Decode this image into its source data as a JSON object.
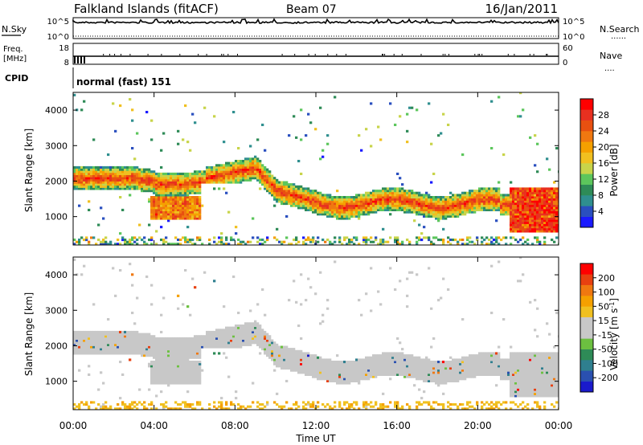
{
  "header": {
    "station": "Falkland Islands (fitACF)",
    "beam": "Beam 07",
    "date": "16/Jan/2011"
  },
  "strip_labels": {
    "nsky": "N.Sky",
    "nsearch": "N.Search",
    "freq_line1": "Freq.",
    "freq_line2": "[MHz]",
    "nave": "Nave",
    "cpid": "CPID",
    "cpid_value": "normal (fast) 151",
    "dots": "......",
    "dots_short": "...."
  },
  "strip_ticks": {
    "noise_left": [
      "10^5",
      "10^0"
    ],
    "noise_right": [
      "10^5",
      "10^0"
    ],
    "freq_left": [
      "18",
      "8"
    ],
    "freq_right": [
      "60",
      "0"
    ]
  },
  "chart_data": [
    {
      "type": "heatmap",
      "panel": "power",
      "ylabel": "Slant Range [km]",
      "xlabel": "",
      "x_ticks": [
        "00:00",
        "04:00",
        "08:00",
        "12:00",
        "16:00",
        "20:00",
        "00:00"
      ],
      "y_ticks": [
        "1000",
        "2000",
        "3000",
        "4000"
      ],
      "ylim": [
        200,
        4500
      ],
      "colorbar": {
        "label": "Power [dB]",
        "ticks": [
          "4",
          "8",
          "12",
          "16",
          "20",
          "24",
          "28"
        ],
        "colors": [
          "#1a1aff",
          "#2a4fbf",
          "#2f8f8f",
          "#2e8b57",
          "#5cc65c",
          "#c8d44a",
          "#f0c020",
          "#f5a000",
          "#f07810",
          "#e85010",
          "#e83020",
          "#ff0000"
        ]
      }
    },
    {
      "type": "heatmap",
      "panel": "velocity",
      "ylabel": "Slant Range [km]",
      "xlabel": "Time UT",
      "x_ticks": [
        "00:00",
        "04:00",
        "08:00",
        "12:00",
        "16:00",
        "20:00",
        "00:00"
      ],
      "y_ticks": [
        "1000",
        "2000",
        "3000",
        "4000"
      ],
      "ylim": [
        200,
        4500
      ],
      "colorbar": {
        "label": "Velocity [m s^-1]",
        "ticks": [
          "200",
          "100",
          "50",
          "15",
          "-15",
          "-50",
          "-100",
          "-200"
        ],
        "colors": [
          "#1a1acc",
          "#2a50b0",
          "#2f7f8f",
          "#2e8b57",
          "#6cc040",
          "#c8c8c8",
          "#c8c8c8",
          "#f0c020",
          "#f5a000",
          "#f07810",
          "#e84010",
          "#ff0000"
        ]
      }
    }
  ]
}
